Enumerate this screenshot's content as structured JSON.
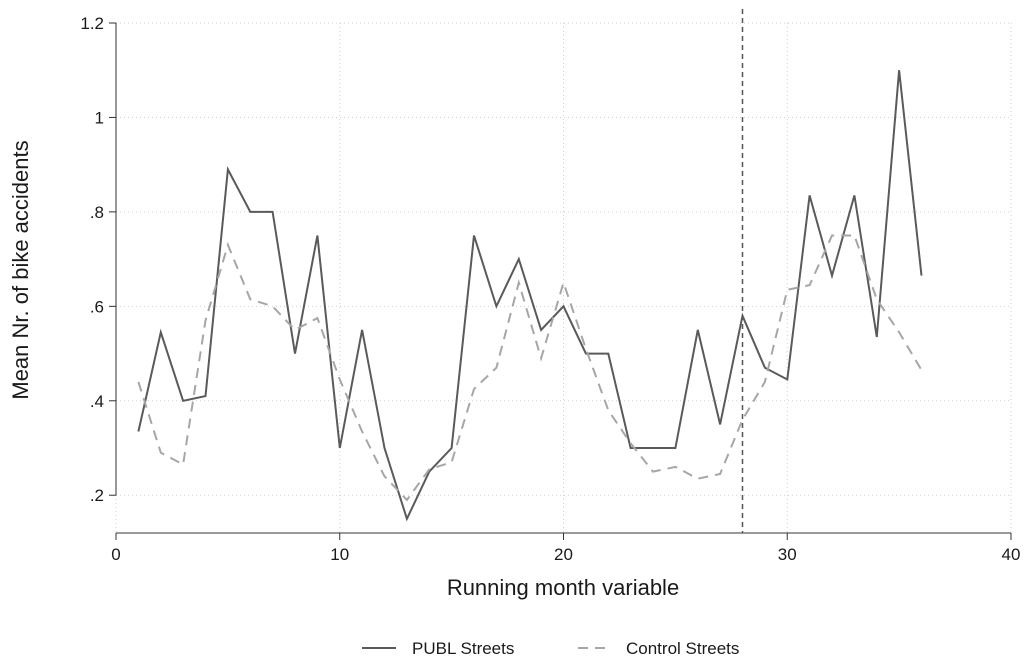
{
  "chart_data": {
    "type": "line",
    "title": "",
    "xlabel": "Running month variable",
    "ylabel": "Mean Nr. of bike accidents",
    "xlim": [
      0,
      40
    ],
    "ylim": [
      0.12,
      1.2
    ],
    "x_ticks": [
      0,
      10,
      20,
      30,
      40
    ],
    "x_tick_labels": [
      "0",
      "10",
      "20",
      "30",
      "40"
    ],
    "y_ticks": [
      0.2,
      0.4,
      0.6,
      0.8,
      1.0,
      1.2
    ],
    "y_tick_labels": [
      ".2",
      ".4",
      ".6",
      ".8",
      "1",
      "1.2"
    ],
    "grid": true,
    "legend_position": "bottom",
    "vertical_reference_line": {
      "x": 28,
      "style": "dashed"
    },
    "x": [
      1,
      2,
      3,
      4,
      5,
      6,
      7,
      8,
      9,
      10,
      11,
      12,
      13,
      14,
      15,
      16,
      17,
      18,
      19,
      20,
      21,
      22,
      23,
      24,
      25,
      26,
      27,
      28,
      29,
      30,
      31,
      32,
      33,
      34,
      35,
      36
    ],
    "series": [
      {
        "name": "PUBL Streets",
        "color": "#5a5a5a",
        "dash": "solid",
        "values": [
          0.335,
          0.545,
          0.4,
          0.41,
          0.89,
          0.8,
          0.8,
          0.5,
          0.75,
          0.3,
          0.55,
          0.3,
          0.15,
          0.25,
          0.3,
          0.75,
          0.6,
          0.7,
          0.55,
          0.6,
          0.5,
          0.5,
          0.3,
          0.3,
          0.3,
          0.55,
          0.35,
          0.58,
          0.47,
          0.445,
          0.835,
          0.665,
          0.835,
          0.535,
          1.1,
          0.665
        ]
      },
      {
        "name": "Control Streets",
        "color": "#a6a6a6",
        "dash": "dashed",
        "values": [
          0.44,
          0.29,
          0.265,
          0.57,
          0.73,
          0.615,
          0.6,
          0.55,
          0.575,
          0.445,
          0.335,
          0.24,
          0.19,
          0.255,
          0.27,
          0.425,
          0.47,
          0.65,
          0.49,
          0.65,
          0.51,
          0.38,
          0.31,
          0.25,
          0.26,
          0.235,
          0.245,
          0.36,
          0.44,
          0.635,
          0.645,
          0.75,
          0.75,
          0.615,
          0.545,
          0.465
        ]
      }
    ]
  }
}
